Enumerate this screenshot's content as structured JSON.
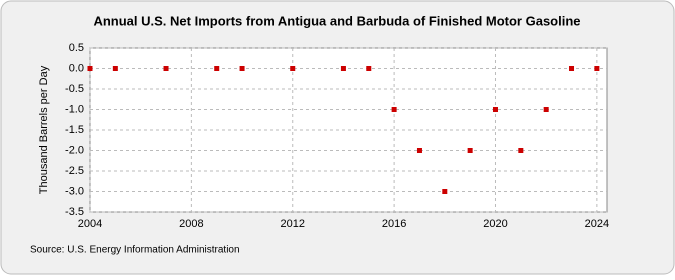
{
  "chart_data": {
    "type": "scatter",
    "title": "Annual U.S. Net Imports from Antigua and Barbuda of Finished Motor Gasoline",
    "y_label": "Thousand Barrels per Day",
    "source": "Source: U.S. Energy Information Administration",
    "x": [
      2004,
      2005,
      2007,
      2009,
      2010,
      2012,
      2014,
      2015,
      2016,
      2017,
      2018,
      2019,
      2020,
      2021,
      2022,
      2023,
      2024
    ],
    "values": [
      0,
      0,
      0,
      0,
      0,
      0,
      0,
      0,
      -1,
      -2,
      -3,
      -2,
      -1,
      -2,
      -1,
      0,
      0
    ],
    "color": "#cc0000",
    "xlim": [
      2004,
      2024.4
    ],
    "xticks": [
      2004,
      2008,
      2012,
      2016,
      2020,
      2024
    ],
    "ylim": [
      -3.5,
      0.5
    ],
    "yticks": [
      0.5,
      {
        "value": 0,
        "label": "0.0"
      },
      -0.5,
      {
        "value": -1,
        "label": "-1.0"
      },
      -1.5,
      {
        "value": -2,
        "label": "-2.0"
      },
      -2.5,
      {
        "value": -3,
        "label": "-3.0"
      },
      -3.5
    ],
    "grid": true
  }
}
